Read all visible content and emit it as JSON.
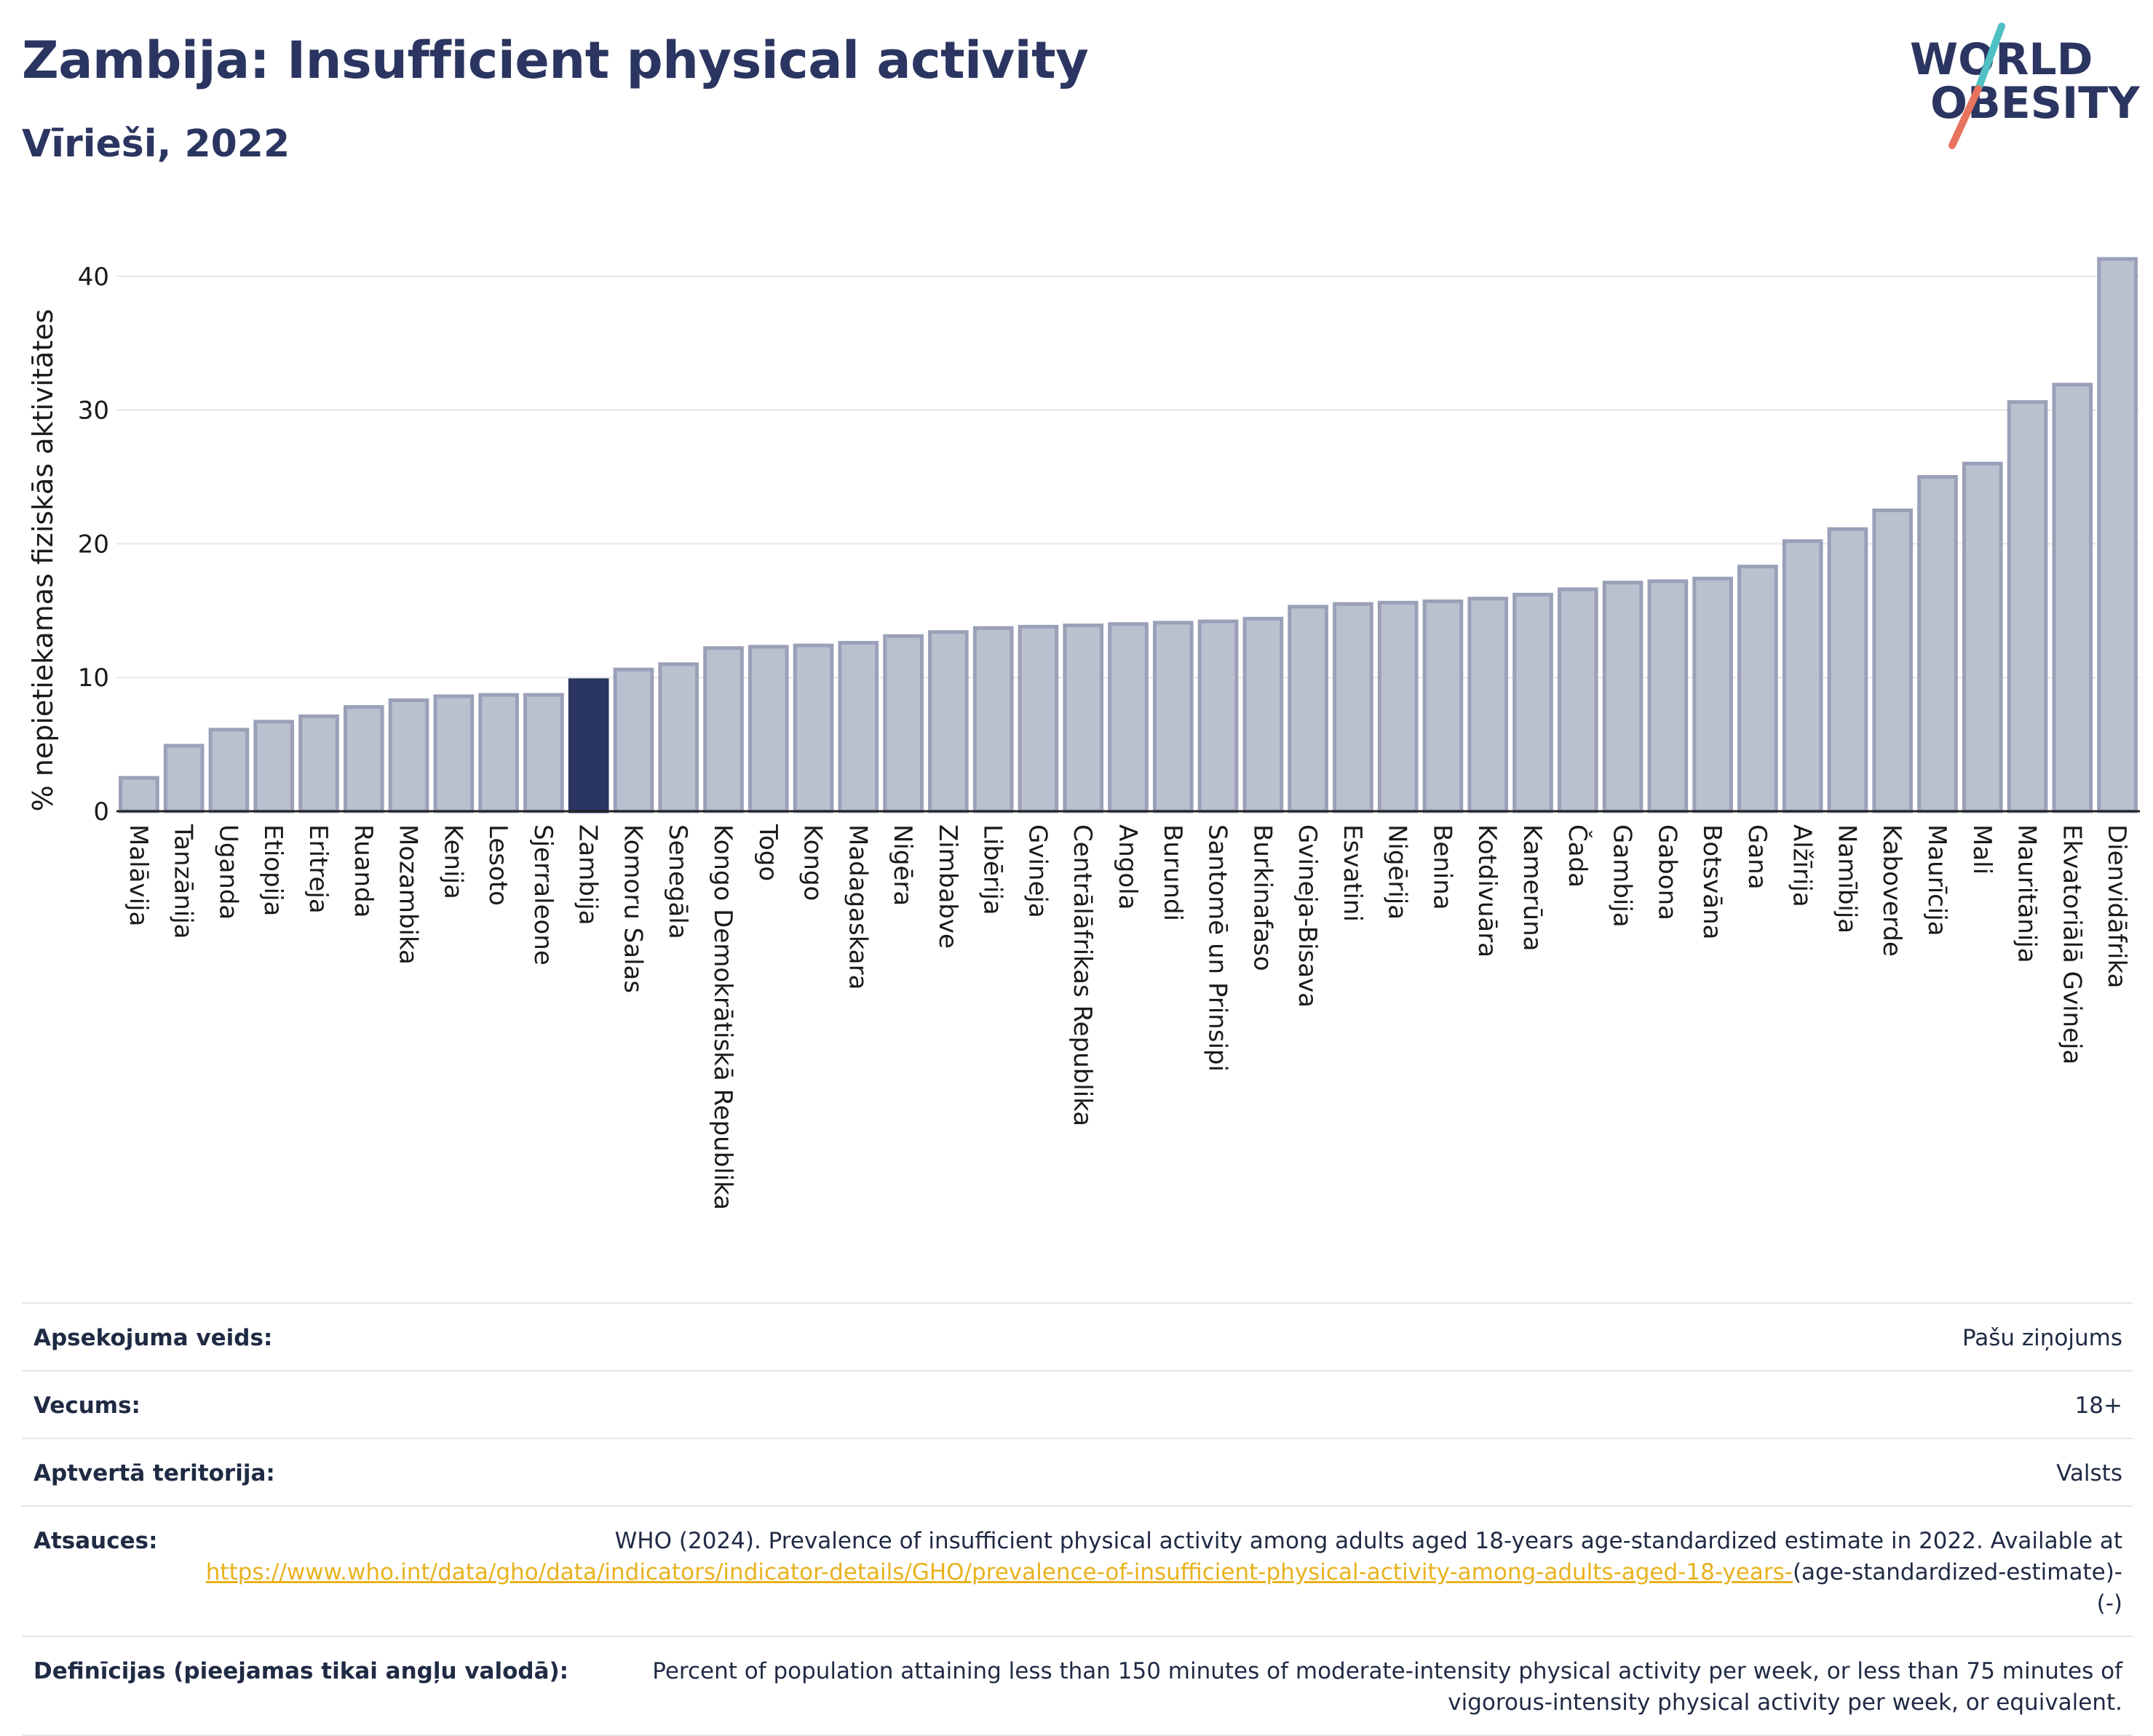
{
  "title": "Zambija: Insufficient physical activity",
  "subtitle": "Vīrieši, 2022",
  "logo": {
    "line1": "WORLD",
    "line2": "OBESITY",
    "accent_colors": [
      "#4fc1c4",
      "#e8735e"
    ]
  },
  "colors": {
    "bar": "#bbc0cf",
    "bar_stroke": "#9aa0b8",
    "highlight": "#2b3561",
    "grid": "#e5e5e5",
    "link": "#e8b21e"
  },
  "chart_data": {
    "type": "bar",
    "title": "",
    "xlabel": "",
    "ylabel": "% nepietiekamas fiziskās aktivitātes",
    "ylim": [
      0,
      42
    ],
    "yticks": [
      0,
      10,
      20,
      30,
      40
    ],
    "grid": true,
    "highlight": "Zambija",
    "categories": [
      "Malāvija",
      "Tanzānija",
      "Uganda",
      "Etiopija",
      "Eritreja",
      "Ruanda",
      "Mozambika",
      "Kenija",
      "Lesoto",
      "Sjerraleone",
      "Zambija",
      "Komoru Salas",
      "Senegāla",
      "Kongo Demokrātiskā Republika",
      "Togo",
      "Kongo",
      "Madagaskara",
      "Nigēra",
      "Zimbabve",
      "Libērija",
      "Gvineja",
      "Centrālāfrikas Republika",
      "Angola",
      "Burundi",
      "Santomē un Prinsipi",
      "Burkinafaso",
      "Gvineja-Bisava",
      "Esvatini",
      "Nigērija",
      "Benina",
      "Kotdivuāra",
      "Kamerūna",
      "Čada",
      "Gambija",
      "Gabona",
      "Botsvāna",
      "Gana",
      "Alžīrija",
      "Namībija",
      "Kaboverde",
      "Maurīcija",
      "Mali",
      "Mauritānija",
      "Ekvatoriālā Gvineja",
      "Dienvidāfrika"
    ],
    "values": [
      2.5,
      4.9,
      6.1,
      6.7,
      7.1,
      7.8,
      8.3,
      8.6,
      8.7,
      8.7,
      9.8,
      10.6,
      11.0,
      12.2,
      12.3,
      12.4,
      12.6,
      13.1,
      13.4,
      13.7,
      13.8,
      13.9,
      14.0,
      14.1,
      14.2,
      14.4,
      15.3,
      15.5,
      15.6,
      15.7,
      15.9,
      16.2,
      16.6,
      17.1,
      17.2,
      17.4,
      18.3,
      20.2,
      21.1,
      22.5,
      25.0,
      26.0,
      30.6,
      31.9,
      41.3
    ]
  },
  "meta": [
    {
      "label": "Apsekojuma veids:",
      "value": "Pašu ziņojums"
    },
    {
      "label": "Vecums:",
      "value": "18+"
    },
    {
      "label": "Aptvertā teritorija:",
      "value": "Valsts"
    },
    {
      "label": "Atsauces:",
      "value": "WHO (2024). Prevalence of insufficient physical activity among adults aged 18-years age-standardized estimate in 2022. Available at",
      "link": "https://www.who.int/data/gho/data/indicators/indicator-details/GHO/prevalence-of-insufficient-physical-activity-among-adults-aged-18-years-",
      "value_after": "(age-standardized-estimate)-(-)"
    },
    {
      "label": "Definīcijas (pieejamas tikai angļu valodā):",
      "value": "Percent of population attaining less than 150 minutes of moderate-intensity physical activity per week, or less than 75 minutes of vigorous-intensity physical activity per week, or equivalent."
    }
  ]
}
